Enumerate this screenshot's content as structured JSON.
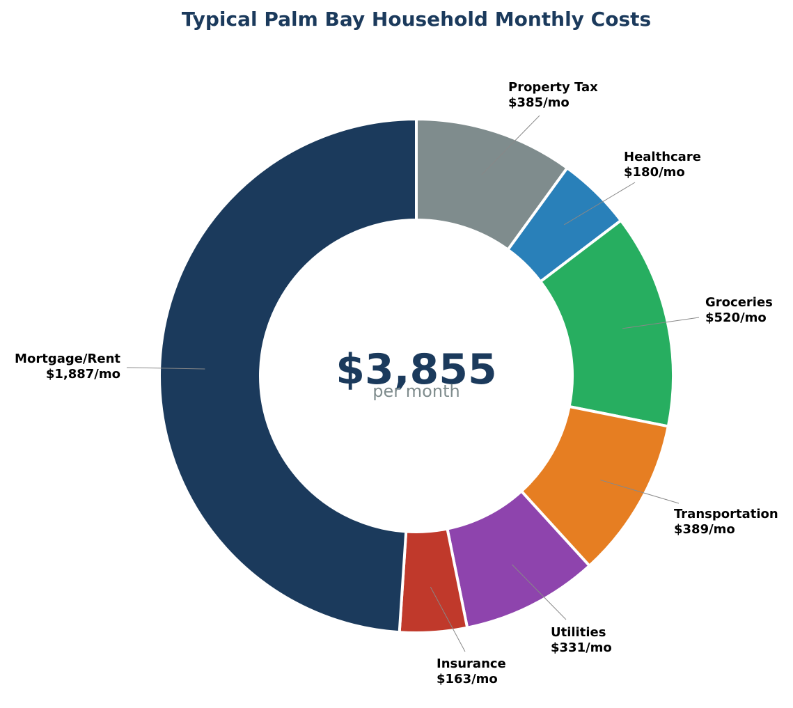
{
  "chart_data": {
    "type": "pie",
    "title": "Typical Palm Bay Household Monthly Costs",
    "center_total": "$3,855",
    "center_subtitle": "per month",
    "slices": [
      {
        "label": "Property Tax",
        "value": 385,
        "value_label": "$385/mo",
        "color": "#7f8c8d"
      },
      {
        "label": "Healthcare",
        "value": 180,
        "value_label": "$180/mo",
        "color": "#2980b9"
      },
      {
        "label": "Groceries",
        "value": 520,
        "value_label": "$520/mo",
        "color": "#27ae60"
      },
      {
        "label": "Transportation",
        "value": 389,
        "value_label": "$389/mo",
        "color": "#e67e22"
      },
      {
        "label": "Utilities",
        "value": 331,
        "value_label": "$331/mo",
        "color": "#8e44ad"
      },
      {
        "label": "Insurance",
        "value": 163,
        "value_label": "$163/mo",
        "color": "#c0392b"
      },
      {
        "label": "Mortgage/Rent",
        "value": 1887,
        "value_label": "$1,887/mo",
        "color": "#1b3a5c"
      }
    ],
    "leader_line_color": "#888888"
  }
}
